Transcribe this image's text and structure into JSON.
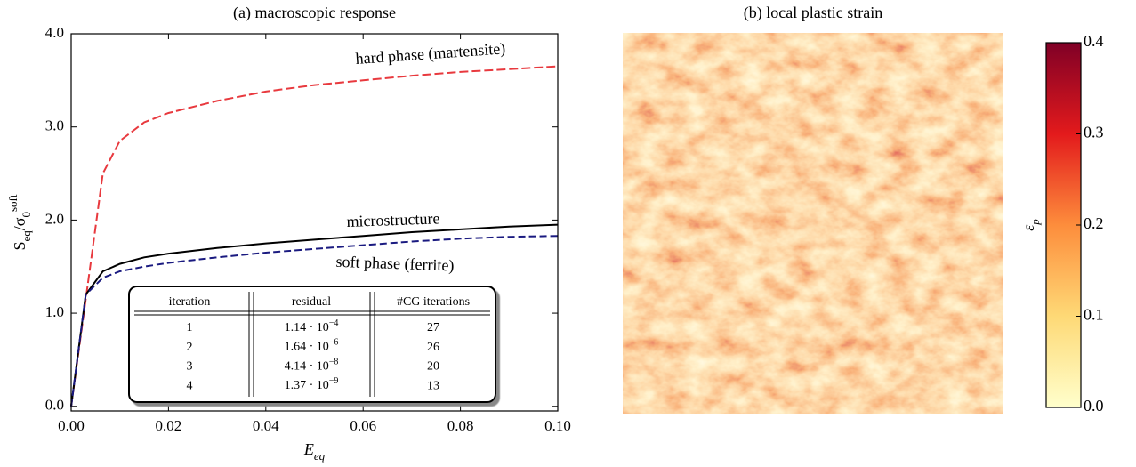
{
  "chart_data": [
    {
      "type": "line",
      "title": "(a) macroscopic response",
      "xlabel": {
        "main": "E",
        "sub": "eq"
      },
      "ylabel": [
        {
          "text": "S"
        },
        {
          "text": "eq",
          "sub": true
        },
        {
          "text": "/σ"
        },
        {
          "text": "0",
          "sub": true
        },
        {
          "text": "soft",
          "sup": true
        }
      ],
      "x": [
        0,
        0.003,
        0.0065,
        0.01,
        0.015,
        0.02,
        0.03,
        0.04,
        0.05,
        0.06,
        0.07,
        0.08,
        0.09,
        0.1
      ],
      "series": [
        {
          "name": "hard phase (martensite)",
          "color": "#e8393e",
          "dash": "10 4",
          "values": [
            0,
            1.15,
            2.5,
            2.85,
            3.05,
            3.15,
            3.28,
            3.38,
            3.45,
            3.5,
            3.55,
            3.59,
            3.62,
            3.65
          ]
        },
        {
          "name": "microstructure",
          "color": "#000000",
          "dash": "none",
          "values": [
            0,
            1.2,
            1.45,
            1.53,
            1.6,
            1.64,
            1.7,
            1.75,
            1.79,
            1.83,
            1.87,
            1.9,
            1.93,
            1.95
          ]
        },
        {
          "name": "soft phase (ferrite)",
          "color": "#1a1a80",
          "dash": "8 4",
          "values": [
            0,
            1.2,
            1.38,
            1.45,
            1.5,
            1.54,
            1.6,
            1.65,
            1.69,
            1.73,
            1.77,
            1.8,
            1.82,
            1.83
          ]
        }
      ],
      "xlim": [
        0,
        0.1
      ],
      "xticks": [
        {
          "value": 0,
          "label": "0.00"
        },
        {
          "value": 0.02,
          "label": "0.02"
        },
        {
          "value": 0.04,
          "label": "0.04"
        },
        {
          "value": 0.06,
          "label": "0.06"
        },
        {
          "value": 0.08,
          "label": "0.08"
        },
        {
          "value": 0.1,
          "label": "0.10"
        }
      ],
      "ylim": [
        -0.05,
        4.0
      ],
      "yticks": [
        {
          "value": 0,
          "label": "0.0"
        },
        {
          "value": 1,
          "label": "1.0"
        },
        {
          "value": 2,
          "label": "2.0"
        },
        {
          "value": 3,
          "label": "3.0"
        },
        {
          "value": 4,
          "label": "4.0"
        }
      ],
      "table": {
        "columns": [
          "iteration",
          "residual",
          "#CG iterations"
        ],
        "rows": [
          {
            "iteration": "1",
            "residual": "1.14 · 10",
            "exponent": "−4",
            "cg": "27"
          },
          {
            "iteration": "2",
            "residual": "1.64 · 10",
            "exponent": "−6",
            "cg": "26"
          },
          {
            "iteration": "3",
            "residual": "4.14 · 10",
            "exponent": "−8",
            "cg": "20"
          },
          {
            "iteration": "4",
            "residual": "1.37 · 10",
            "exponent": "−9",
            "cg": "13"
          }
        ]
      }
    },
    {
      "type": "heatmap",
      "title": "(b) local plastic strain",
      "colorbar": {
        "label": {
          "main": "ε",
          "sub": "p"
        },
        "lim": [
          0,
          0.4
        ],
        "ticks": [
          {
            "value": 0,
            "label": "0.0"
          },
          {
            "value": 0.1,
            "label": "0.1"
          },
          {
            "value": 0.2,
            "label": "0.2"
          },
          {
            "value": 0.3,
            "label": "0.3"
          },
          {
            "value": 0.4,
            "label": "0.4"
          }
        ],
        "colormap": [
          "#ffffcc",
          "#fed976",
          "#fd8d3c",
          "#e31a1c",
          "#800026"
        ]
      }
    }
  ]
}
